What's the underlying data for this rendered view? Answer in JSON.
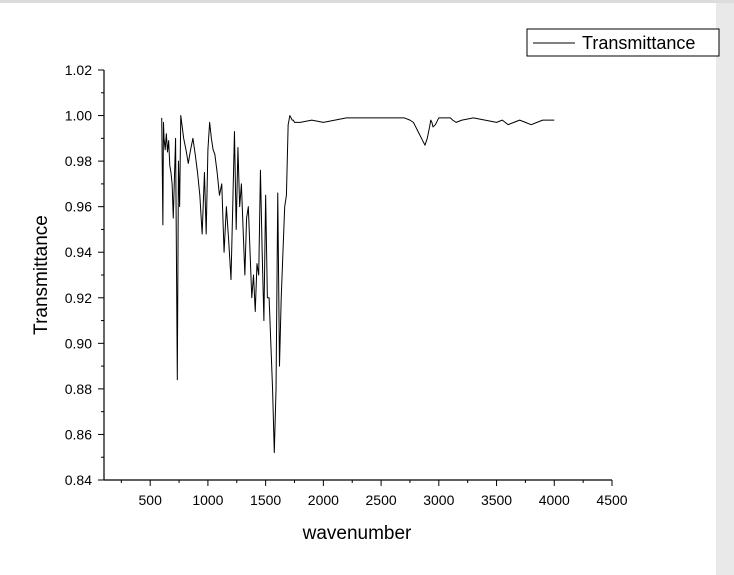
{
  "chart_data": {
    "type": "line",
    "xlabel": "wavenumber",
    "ylabel": "Transmittance",
    "xlim": [
      100,
      4500
    ],
    "ylim": [
      0.84,
      1.02
    ],
    "x_ticks": [
      500,
      1000,
      1500,
      2000,
      2500,
      3000,
      3500,
      4000,
      4500
    ],
    "y_ticks": [
      "0.84",
      "0.86",
      "0.88",
      "0.90",
      "0.92",
      "0.94",
      "0.96",
      "0.98",
      "1.00",
      "1.02"
    ],
    "grid": false,
    "legend": {
      "position": "top-right",
      "entries": [
        "Transmittance"
      ]
    },
    "series": [
      {
        "name": "Transmittance",
        "color": "#000000",
        "x": [
          600,
          610,
          615,
          620,
          630,
          640,
          650,
          660,
          670,
          680,
          690,
          700,
          720,
          735,
          745,
          755,
          765,
          775,
          790,
          810,
          830,
          850,
          870,
          890,
          910,
          930,
          950,
          970,
          985,
          1000,
          1015,
          1030,
          1045,
          1060,
          1080,
          1100,
          1120,
          1140,
          1160,
          1180,
          1200,
          1215,
          1230,
          1245,
          1260,
          1275,
          1290,
          1305,
          1320,
          1335,
          1350,
          1365,
          1380,
          1395,
          1410,
          1425,
          1440,
          1455,
          1470,
          1485,
          1500,
          1515,
          1530,
          1545,
          1560,
          1575,
          1590,
          1605,
          1620,
          1635,
          1650,
          1665,
          1680,
          1695,
          1710,
          1720,
          1730,
          1740,
          1750,
          1800,
          1900,
          2000,
          2100,
          2200,
          2300,
          2400,
          2500,
          2600,
          2700,
          2750,
          2780,
          2800,
          2820,
          2850,
          2880,
          2900,
          2920,
          2930,
          2940,
          2950,
          2970,
          3000,
          3020,
          3050,
          3080,
          3100,
          3120,
          3150,
          3200,
          3300,
          3400,
          3500,
          3550,
          3600,
          3650,
          3700,
          3750,
          3800,
          3850,
          3900,
          3950,
          4000
        ],
        "y": [
          0.999,
          0.952,
          0.997,
          0.99,
          0.985,
          0.992,
          0.984,
          0.989,
          0.978,
          0.975,
          0.97,
          0.955,
          0.99,
          0.884,
          0.98,
          0.96,
          1.0,
          0.996,
          0.99,
          0.985,
          0.979,
          0.985,
          0.99,
          0.983,
          0.975,
          0.965,
          0.948,
          0.975,
          0.948,
          0.985,
          0.997,
          0.99,
          0.985,
          0.983,
          0.975,
          0.965,
          0.97,
          0.94,
          0.96,
          0.945,
          0.928,
          0.96,
          0.993,
          0.95,
          0.986,
          0.96,
          0.97,
          0.95,
          0.93,
          0.955,
          0.96,
          0.94,
          0.92,
          0.93,
          0.914,
          0.935,
          0.93,
          0.976,
          0.94,
          0.91,
          0.965,
          0.92,
          0.92,
          0.9,
          0.88,
          0.852,
          0.88,
          0.966,
          0.89,
          0.92,
          0.94,
          0.96,
          0.965,
          0.996,
          1.0,
          0.999,
          0.998,
          0.998,
          0.997,
          0.997,
          0.998,
          0.997,
          0.998,
          0.999,
          0.999,
          0.999,
          0.999,
          0.999,
          0.999,
          0.998,
          0.997,
          0.995,
          0.993,
          0.99,
          0.987,
          0.99,
          0.995,
          0.998,
          0.997,
          0.995,
          0.996,
          0.999,
          0.999,
          0.999,
          0.999,
          0.999,
          0.998,
          0.997,
          0.998,
          0.999,
          0.998,
          0.997,
          0.998,
          0.996,
          0.997,
          0.998,
          0.997,
          0.996,
          0.997,
          0.998,
          0.998,
          0.998
        ]
      }
    ]
  }
}
